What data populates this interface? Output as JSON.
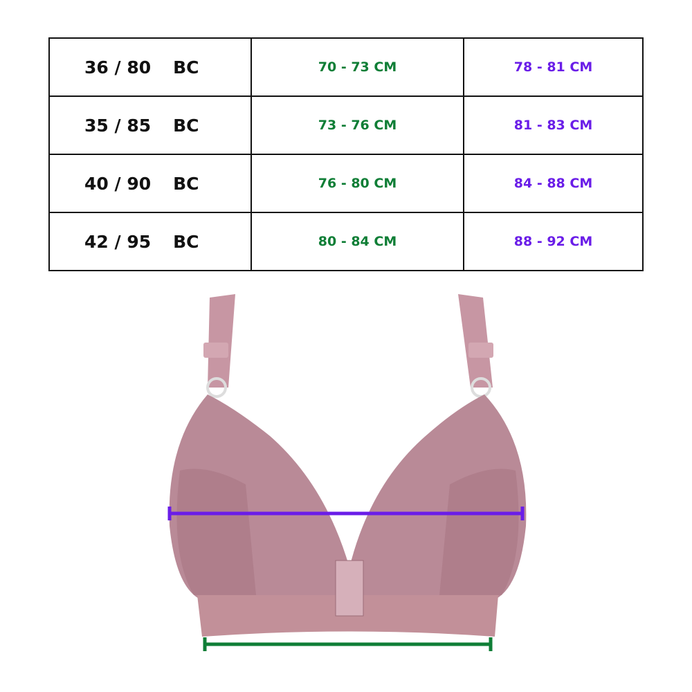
{
  "size_chart": {
    "rows": [
      {
        "size": "36 / 80",
        "cups": "BC",
        "underbust": "70 - 73 CM",
        "bust": "78 - 81 CM"
      },
      {
        "size": "35 / 85",
        "cups": "BC",
        "underbust": "73 - 76 CM",
        "bust": "81 - 83 CM"
      },
      {
        "size": "40 / 90",
        "cups": "BC",
        "underbust": "76 - 80 CM",
        "bust": "84 - 88 CM"
      },
      {
        "size": "42 / 95",
        "cups": "BC",
        "underbust": "80 - 84 CM",
        "bust": "88 - 92 CM"
      }
    ]
  },
  "colors": {
    "underbust": "#0f7e36",
    "bust": "#6a1de8",
    "product": "#b98a97"
  },
  "product_image": {
    "subject": "pink front-closure bra",
    "bust_line_color": "#6a1de8",
    "underbust_line_color": "#0f7e36"
  }
}
